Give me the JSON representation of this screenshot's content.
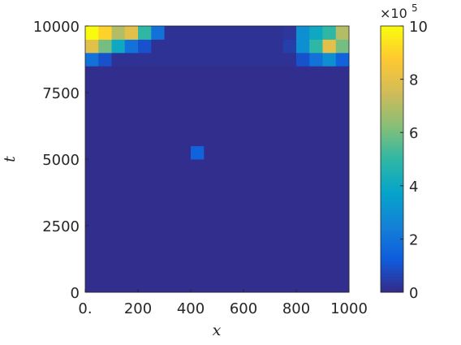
{
  "chart_data": {
    "type": "heatmap",
    "xlabel": "x",
    "ylabel": "t",
    "xlim": [
      0,
      1000
    ],
    "ylim": [
      0,
      10000
    ],
    "xticks": [
      {
        "value": 0,
        "label": "0."
      },
      200,
      400,
      600,
      800,
      1000
    ],
    "yticks": [
      0,
      2500,
      5000,
      7500,
      10000
    ],
    "clim": [
      0,
      1000000
    ],
    "cticks": [
      0,
      {
        "value": 200000,
        "label": "2"
      },
      {
        "value": 400000,
        "label": "4"
      },
      {
        "value": 600000,
        "label": "6"
      },
      {
        "value": 800000,
        "label": "8"
      },
      {
        "value": 1000000,
        "label": "10"
      }
    ],
    "colorbar_multiplier": "×10",
    "colorbar_exponent": "5",
    "colormap": [
      "#352a87",
      "#0f5cdd",
      "#1481d6",
      "#06a4ca",
      "#2eb7a4",
      "#87bf77",
      "#d1bb59",
      "#fec832",
      "#f9fb0e"
    ],
    "z": [
      [
        10000,
        10000,
        10000,
        10000,
        10000,
        10000,
        10000,
        10000,
        10000,
        10000,
        10000,
        10000,
        10000,
        10000,
        10000,
        10000,
        10000,
        10000,
        10000,
        10000
      ],
      [
        10000,
        10000,
        10000,
        10000,
        10000,
        10000,
        10000,
        10000,
        10000,
        10000,
        10000,
        10000,
        10000,
        10000,
        10000,
        10000,
        10000,
        10000,
        10000,
        10000
      ],
      [
        10000,
        10000,
        10000,
        10000,
        10000,
        10000,
        10000,
        10000,
        10000,
        10000,
        10000,
        10000,
        10000,
        10000,
        10000,
        10000,
        10000,
        10000,
        10000,
        10000
      ],
      [
        10000,
        10000,
        10000,
        10000,
        10000,
        10000,
        10000,
        10000,
        10000,
        10000,
        10000,
        10000,
        10000,
        10000,
        10000,
        10000,
        10000,
        10000,
        10000,
        10000
      ],
      [
        10000,
        10000,
        10000,
        10000,
        10000,
        10000,
        10000,
        10000,
        10000,
        10000,
        10000,
        10000,
        10000,
        10000,
        10000,
        10000,
        10000,
        10000,
        10000,
        10000
      ],
      [
        10000,
        10000,
        10000,
        10000,
        10000,
        10000,
        10000,
        10000,
        10000,
        10000,
        10000,
        10000,
        10000,
        10000,
        10000,
        10000,
        10000,
        10000,
        10000,
        10000
      ],
      [
        10000,
        10000,
        10000,
        10000,
        10000,
        10000,
        10000,
        10000,
        10000,
        10000,
        10000,
        10000,
        10000,
        10000,
        10000,
        10000,
        10000,
        10000,
        10000,
        10000
      ],
      [
        10000,
        10000,
        10000,
        10000,
        10000,
        10000,
        10000,
        10000,
        10000,
        10000,
        10000,
        10000,
        10000,
        10000,
        10000,
        10000,
        10000,
        10000,
        10000,
        10000
      ],
      [
        10000,
        10000,
        10000,
        10000,
        10000,
        10000,
        10000,
        10000,
        10000,
        10000,
        10000,
        10000,
        10000,
        10000,
        10000,
        10000,
        10000,
        10000,
        10000,
        10000
      ],
      [
        10000,
        10000,
        10000,
        10000,
        10000,
        10000,
        10000,
        10000,
        10000,
        10000,
        10000,
        10000,
        10000,
        10000,
        10000,
        10000,
        10000,
        10000,
        10000,
        10000
      ],
      [
        10000,
        10000,
        10000,
        10000,
        10000,
        10000,
        10000,
        10000,
        150000,
        10000,
        10000,
        10000,
        10000,
        10000,
        10000,
        10000,
        10000,
        10000,
        10000,
        10000
      ],
      [
        10000,
        10000,
        10000,
        10000,
        10000,
        10000,
        10000,
        10000,
        10000,
        10000,
        10000,
        10000,
        10000,
        10000,
        10000,
        10000,
        10000,
        10000,
        10000,
        10000
      ],
      [
        10000,
        10000,
        10000,
        10000,
        10000,
        10000,
        10000,
        10000,
        10000,
        10000,
        10000,
        10000,
        10000,
        10000,
        10000,
        10000,
        10000,
        10000,
        10000,
        10000
      ],
      [
        10000,
        10000,
        10000,
        10000,
        10000,
        10000,
        10000,
        10000,
        10000,
        10000,
        10000,
        10000,
        10000,
        10000,
        10000,
        10000,
        10000,
        10000,
        10000,
        10000
      ],
      [
        10000,
        10000,
        10000,
        10000,
        10000,
        10000,
        10000,
        10000,
        10000,
        10000,
        10000,
        10000,
        10000,
        10000,
        10000,
        10000,
        10000,
        10000,
        10000,
        10000
      ],
      [
        10000,
        10000,
        10000,
        10000,
        10000,
        10000,
        10000,
        10000,
        10000,
        10000,
        10000,
        10000,
        10000,
        10000,
        10000,
        10000,
        10000,
        10000,
        10000,
        10000
      ],
      [
        10000,
        10000,
        10000,
        10000,
        10000,
        10000,
        10000,
        10000,
        10000,
        10000,
        10000,
        10000,
        10000,
        10000,
        10000,
        10000,
        10000,
        10000,
        10000,
        10000
      ],
      [
        200000,
        100000,
        20000,
        20000,
        20000,
        20000,
        20000,
        20000,
        20000,
        20000,
        20000,
        20000,
        20000,
        20000,
        20000,
        20000,
        100000,
        200000,
        300000,
        150000
      ],
      [
        800000,
        600000,
        400000,
        200000,
        100000,
        20000,
        20000,
        20000,
        20000,
        20000,
        20000,
        20000,
        20000,
        20000,
        20000,
        50000,
        300000,
        500000,
        800000,
        600000
      ],
      [
        1000000,
        900000,
        700000,
        800000,
        500000,
        200000,
        20000,
        20000,
        20000,
        20000,
        20000,
        20000,
        20000,
        20000,
        20000,
        30000,
        300000,
        400000,
        500000,
        700000
      ]
    ]
  }
}
